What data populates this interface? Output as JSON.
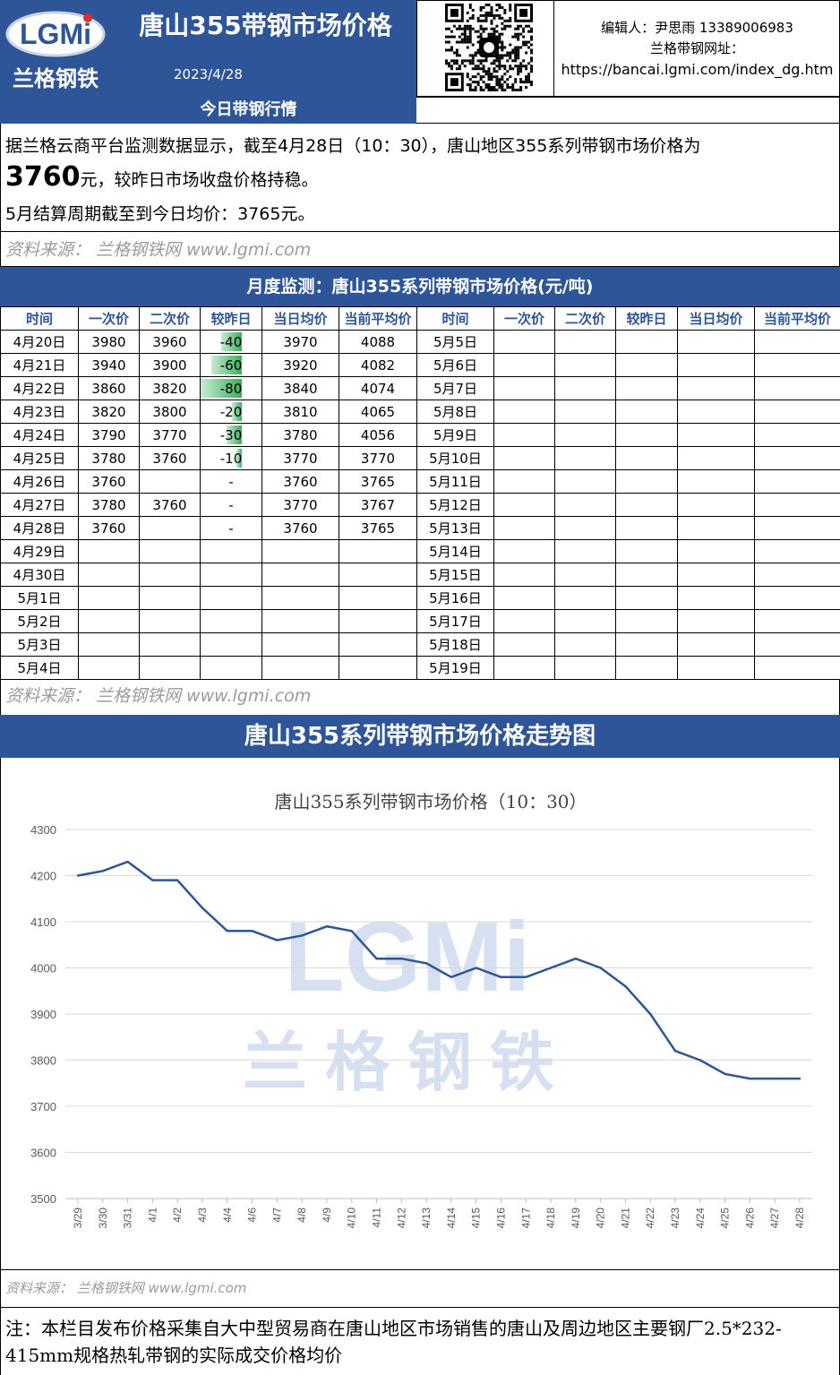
{
  "header": {
    "logo_text": "LGMi",
    "logo_cn": "兰格钢铁",
    "title": "唐山355带钢市场价格",
    "date": "2023/4/28",
    "editor": "编辑人：尹思雨 13389006983",
    "site_label": "兰格带钢网址：",
    "site_url": "https://bancai.lgmi.com/index_dg.htm"
  },
  "today": {
    "heading": "今日带钢行情",
    "line1": "据兰格云商平台监测数据显示，截至4月28日（10：30），唐山地区355系列带钢市场价格为",
    "price": "3760",
    "line2_rest": "元，较昨日市场收盘价格持稳。",
    "line3": "5月结算周期截至到今日均价：3765元。"
  },
  "source_text": "资料来源： 兰格钢铁网 www.lgmi.com",
  "monthly": {
    "heading": "月度监测：唐山355系列带钢市场价格(元/吨)",
    "columns": [
      "时间",
      "一次价",
      "二次价",
      "较昨日",
      "当日均价",
      "当前平均价",
      "时间",
      "一次价",
      "二次价",
      "较昨日",
      "当日均价",
      "当前平均价"
    ],
    "rows": [
      {
        "d": "4月20日",
        "p1": "3980",
        "p2": "3960",
        "chg": "-40",
        "chg_v": -40,
        "avg": "3970",
        "cur": "4088",
        "d2": "5月5日"
      },
      {
        "d": "4月21日",
        "p1": "3940",
        "p2": "3900",
        "chg": "-60",
        "chg_v": -60,
        "avg": "3920",
        "cur": "4082",
        "d2": "5月6日"
      },
      {
        "d": "4月22日",
        "p1": "3860",
        "p2": "3820",
        "chg": "-80",
        "chg_v": -80,
        "avg": "3840",
        "cur": "4074",
        "d2": "5月7日"
      },
      {
        "d": "4月23日",
        "p1": "3820",
        "p2": "3800",
        "chg": "-20",
        "chg_v": -20,
        "avg": "3810",
        "cur": "4065",
        "d2": "5月8日"
      },
      {
        "d": "4月24日",
        "p1": "3790",
        "p2": "3770",
        "chg": "-30",
        "chg_v": -30,
        "avg": "3780",
        "cur": "4056",
        "d2": "5月9日"
      },
      {
        "d": "4月25日",
        "p1": "3780",
        "p2": "3760",
        "chg": "-10",
        "chg_v": -10,
        "avg": "3770",
        "cur": "3770",
        "d2": "5月10日"
      },
      {
        "d": "4月26日",
        "p1": "3760",
        "p2": "",
        "chg": "-",
        "chg_v": 0,
        "avg": "3760",
        "cur": "3765",
        "d2": "5月11日"
      },
      {
        "d": "4月27日",
        "p1": "3780",
        "p2": "3760",
        "chg": "-",
        "chg_v": 0,
        "avg": "3770",
        "cur": "3767",
        "d2": "5月12日"
      },
      {
        "d": "4月28日",
        "p1": "3760",
        "p2": "",
        "chg": "-",
        "chg_v": 0,
        "avg": "3760",
        "cur": "3765",
        "d2": "5月13日"
      },
      {
        "d": "4月29日",
        "p1": "",
        "p2": "",
        "chg": "",
        "chg_v": 0,
        "avg": "",
        "cur": "",
        "d2": "5月14日"
      },
      {
        "d": "4月30日",
        "p1": "",
        "p2": "",
        "chg": "",
        "chg_v": 0,
        "avg": "",
        "cur": "",
        "d2": "5月15日"
      },
      {
        "d": "5月1日",
        "p1": "",
        "p2": "",
        "chg": "",
        "chg_v": 0,
        "avg": "",
        "cur": "",
        "d2": "5月16日"
      },
      {
        "d": "5月2日",
        "p1": "",
        "p2": "",
        "chg": "",
        "chg_v": 0,
        "avg": "",
        "cur": "",
        "d2": "5月17日"
      },
      {
        "d": "5月3日",
        "p1": "",
        "p2": "",
        "chg": "",
        "chg_v": 0,
        "avg": "",
        "cur": "",
        "d2": "5月18日"
      },
      {
        "d": "5月4日",
        "p1": "",
        "p2": "",
        "chg": "",
        "chg_v": 0,
        "avg": "",
        "cur": "",
        "d2": "5月19日"
      }
    ]
  },
  "chart_heading": "唐山355系列带钢市场价格走势图",
  "chart_data": {
    "type": "line",
    "title": "唐山355系列带钢市场价格（10：30）",
    "xlabel": "",
    "ylabel": "",
    "ylim": [
      3500,
      4300
    ],
    "yticks": [
      3500,
      3600,
      3700,
      3800,
      3900,
      4000,
      4100,
      4200,
      4300
    ],
    "grid": true,
    "color": "#2e5597",
    "x": [
      "3/29",
      "3/30",
      "3/31",
      "4/1",
      "4/2",
      "4/3",
      "4/4",
      "4/6",
      "4/7",
      "4/8",
      "4/9",
      "4/10",
      "4/11",
      "4/12",
      "4/13",
      "4/14",
      "4/15",
      "4/16",
      "4/17",
      "4/18",
      "4/19",
      "4/20",
      "4/21",
      "4/22",
      "4/23",
      "4/24",
      "4/25",
      "4/26",
      "4/27",
      "4/28"
    ],
    "values": [
      4200,
      4210,
      4230,
      4190,
      4190,
      4130,
      4080,
      4080,
      4060,
      4070,
      4090,
      4080,
      4020,
      4020,
      4010,
      3980,
      4000,
      3980,
      3980,
      4000,
      4020,
      4000,
      3960,
      3900,
      3820,
      3800,
      3770,
      3760,
      3760,
      3760
    ],
    "watermark": "LGMi 兰格钢铁"
  },
  "note": "注：本栏目发布价格采集自大中型贸易商在唐山地区市场销售的唐山及周边地区主要钢厂2.5*232-415mm规格热轧带钢的实际成交价格均价"
}
